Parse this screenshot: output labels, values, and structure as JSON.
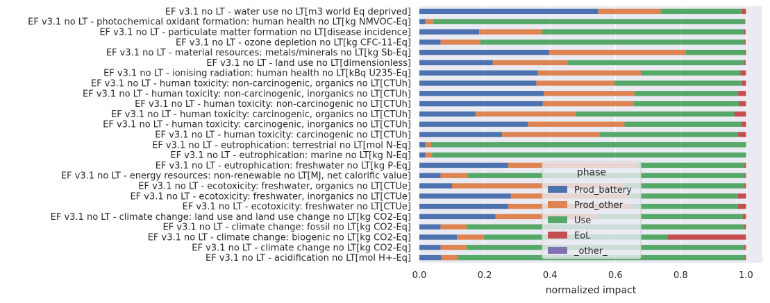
{
  "chart_data": {
    "type": "bar",
    "orientation": "horizontal",
    "stacked": true,
    "xlabel": "normalized impact",
    "ylabel": "",
    "xlim": [
      0,
      1.05
    ],
    "xticks": [
      0.0,
      0.2,
      0.4,
      0.6,
      0.8,
      1.0
    ],
    "xtick_labels": [
      "0.0",
      "0.2",
      "0.4",
      "0.6",
      "0.8",
      "1.0"
    ],
    "grid": true,
    "legend": {
      "title": "phase",
      "placement": "lower-right",
      "entries": [
        "Prod_battery",
        "Prod_other",
        "Use",
        "EoL",
        "_other_"
      ]
    },
    "colors": {
      "Prod_battery": "#4c72b0",
      "Prod_other": "#dd8452",
      "Use": "#55a868",
      "EoL": "#c44e52",
      "_other_": "#8172b3",
      "background": "#eaeaf2",
      "grid": "#ffffff"
    },
    "categories": [
      "EF v3.1 no LT - water use no LT[m3 world Eq deprived]",
      "EF v3.1 no LT - photochemical oxidant formation: human health no LT[kg NMVOC-Eq]",
      "EF v3.1 no LT - particulate matter formation no LT[disease incidence]",
      "EF v3.1 no LT - ozone depletion no LT[kg CFC-11-Eq]",
      "EF v3.1 no LT - material resources: metals/minerals no LT[kg Sb-Eq]",
      "EF v3.1 no LT - land use no LT[dimensionless]",
      "EF v3.1 no LT - ionising radiation: human health no LT[kBq U235-Eq]",
      "EF v3.1 no LT - human toxicity: non-carcinogenic, organics no LT[CTUh]",
      "EF v3.1 no LT - human toxicity: non-carcinogenic, inorganics no LT[CTUh]",
      "EF v3.1 no LT - human toxicity: non-carcinogenic no LT[CTUh]",
      "EF v3.1 no LT - human toxicity: carcinogenic, organics no LT[CTUh]",
      "EF v3.1 no LT - human toxicity: carcinogenic, inorganics no LT[CTUh]",
      "EF v3.1 no LT - human toxicity: carcinogenic no LT[CTUh]",
      "EF v3.1 no LT - eutrophication: terrestrial no LT[mol N-Eq]",
      "EF v3.1 no LT - eutrophication: marine no LT[kg N-Eq]",
      "EF v3.1 no LT - eutrophication: freshwater no LT[kg P-Eq]",
      "EF v3.1 no LT - energy resources: non-renewable no LT[MJ, net calorific value]",
      "EF v3.1 no LT - ecotoxicity: freshwater, organics no LT[CTUe]",
      "EF v3.1 no LT - ecotoxicity: freshwater, inorganics no LT[CTUe]",
      "EF v3.1 no LT - ecotoxicity: freshwater no LT[CTUe]",
      "EF v3.1 no LT - climate change: land use and land use change no LT[kg CO2-Eq]",
      "EF v3.1 no LT - climate change: fossil no LT[kg CO2-Eq]",
      "EF v3.1 no LT - climate change: biogenic no LT[kg CO2-Eq]",
      "EF v3.1 no LT - climate change no LT[kg CO2-Eq]",
      "EF v3.1 no LT - acidification no LT[mol H+-Eq]"
    ],
    "series": [
      {
        "name": "Prod_battery",
        "values": [
          0.547,
          0.018,
          0.183,
          0.065,
          0.398,
          0.225,
          0.363,
          0.358,
          0.381,
          0.378,
          0.172,
          0.333,
          0.253,
          0.018,
          0.018,
          0.272,
          0.065,
          0.1,
          0.28,
          0.272,
          0.233,
          0.065,
          0.115,
          0.065,
          0.067
        ]
      },
      {
        "name": "Prod_other",
        "values": [
          0.192,
          0.024,
          0.192,
          0.122,
          0.417,
          0.228,
          0.315,
          0.24,
          0.277,
          0.277,
          0.307,
          0.295,
          0.3,
          0.018,
          0.021,
          0.393,
          0.082,
          0.525,
          0.355,
          0.373,
          0.31,
          0.08,
          0.082,
          0.08,
          0.05
        ]
      },
      {
        "name": "Use",
        "values": [
          0.249,
          0.954,
          0.62,
          0.808,
          0.181,
          0.542,
          0.305,
          0.39,
          0.318,
          0.323,
          0.485,
          0.358,
          0.422,
          0.964,
          0.961,
          0.33,
          0.849,
          0.37,
          0.34,
          0.33,
          0.447,
          0.85,
          0.563,
          0.85,
          0.879
        ]
      },
      {
        "name": "EoL",
        "values": [
          0.012,
          0.002,
          0.004,
          0.004,
          0.004,
          0.004,
          0.017,
          0.012,
          0.024,
          0.022,
          0.036,
          0.014,
          0.025,
          0.0,
          0.0,
          0.005,
          0.004,
          0.005,
          0.025,
          0.025,
          0.01,
          0.005,
          0.24,
          0.005,
          0.004
        ]
      },
      {
        "name": "_other_",
        "values": [
          0,
          0,
          0,
          0,
          0,
          0,
          0,
          0,
          0,
          0,
          0,
          0,
          0,
          0,
          0,
          0,
          0,
          0,
          0,
          0,
          0,
          0,
          0,
          0,
          0
        ]
      }
    ]
  }
}
